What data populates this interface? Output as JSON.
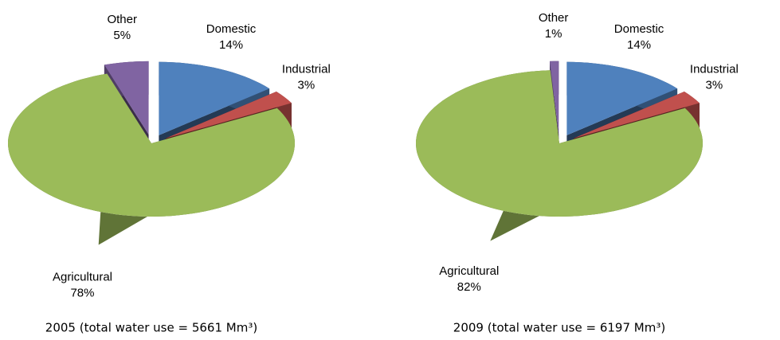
{
  "chart_data": [
    {
      "type": "pie",
      "title": "2005 (total water use = 5661 Mm³)",
      "categories": [
        "Domestic",
        "Industrial",
        "Agricultural",
        "Other"
      ],
      "values": [
        14,
        3,
        78,
        5
      ],
      "value_labels": [
        "14%",
        "3%",
        "78%",
        "5%"
      ],
      "colors": [
        "#4f81bd",
        "#c0504d",
        "#9bbb59",
        "#8064a2"
      ]
    },
    {
      "type": "pie",
      "title": "2009 (total water use = 6197 Mm³)",
      "categories": [
        "Domestic",
        "Industrial",
        "Agricultural",
        "Other"
      ],
      "values": [
        14,
        3,
        82,
        1
      ],
      "value_labels": [
        "14%",
        "3%",
        "82%",
        "1%"
      ],
      "colors": [
        "#4f81bd",
        "#c0504d",
        "#9bbb59",
        "#8064a2"
      ]
    }
  ]
}
